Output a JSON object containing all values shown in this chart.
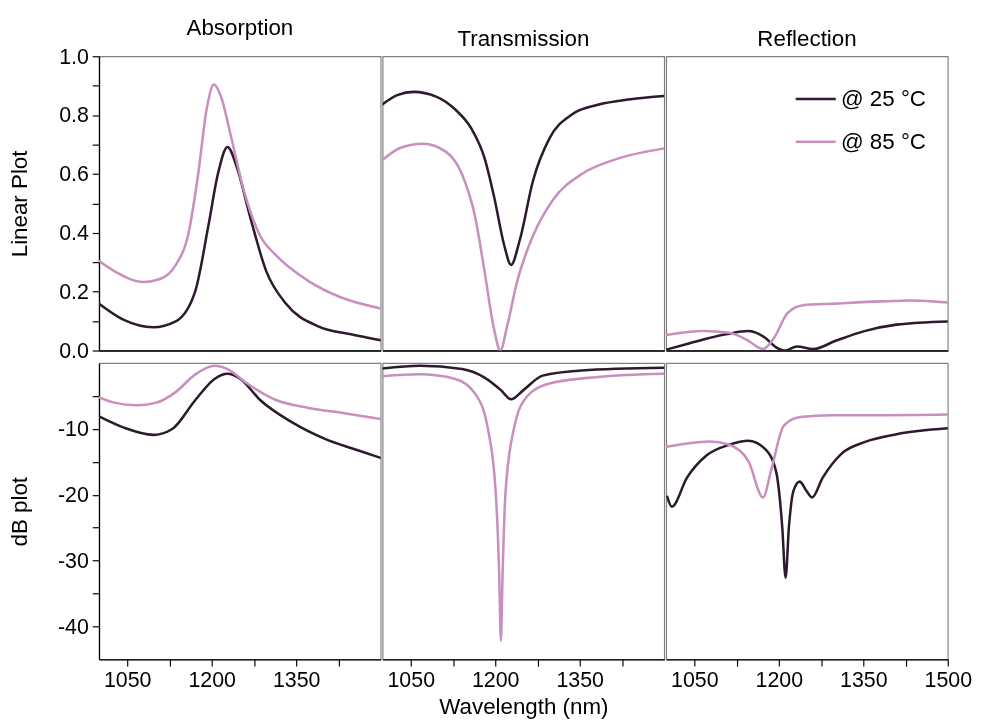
{
  "chart_data": [
    {
      "type": "line",
      "title": "Absorption",
      "ylabel": "Linear Plot",
      "xlim": [
        1000,
        1500
      ],
      "ylim": [
        0,
        1
      ],
      "tick_labels": "y",
      "yticks": [
        {
          "value": 0,
          "label": "0.0"
        },
        {
          "value": 0.1,
          "label": null
        },
        {
          "value": 0.2,
          "label": "0.2"
        },
        {
          "value": 0.3,
          "label": null
        },
        {
          "value": 0.4,
          "label": "0.4"
        },
        {
          "value": 0.5,
          "label": null
        },
        {
          "value": 0.6,
          "label": "0.6"
        },
        {
          "value": 0.7,
          "label": null
        },
        {
          "value": 0.8,
          "label": "0.8"
        },
        {
          "value": 0.9,
          "label": null
        },
        {
          "value": 1,
          "label": "1.0"
        }
      ],
      "series": [
        {
          "color": "#2e1a2e",
          "x": [
            1000,
            1044,
            1096,
            1136,
            1171,
            1194,
            1211,
            1228,
            1245,
            1268,
            1297,
            1332,
            1389,
            1447,
            1500
          ],
          "values": [
            0.159,
            0.104,
            0.079,
            0.099,
            0.203,
            0.423,
            0.6,
            0.692,
            0.621,
            0.456,
            0.269,
            0.159,
            0.082,
            0.055,
            0.035
          ]
        },
        {
          "color": "#c88fbf",
          "x": [
            1000,
            1027,
            1079,
            1107,
            1136,
            1159,
            1176,
            1191,
            1204,
            1217,
            1234,
            1257,
            1286,
            1314,
            1372,
            1429,
            1500
          ],
          "values": [
            0.304,
            0.27,
            0.233,
            0.242,
            0.29,
            0.4,
            0.6,
            0.82,
            0.904,
            0.86,
            0.73,
            0.544,
            0.39,
            0.324,
            0.236,
            0.181,
            0.143
          ]
        }
      ]
    },
    {
      "type": "line",
      "title": "Transmission",
      "xlim": [
        1000,
        1500
      ],
      "ylim": [
        0,
        1
      ],
      "tick_labels": false,
      "series": [
        {
          "color": "#2e1a2e",
          "x": [
            1000,
            1026,
            1055,
            1095,
            1129,
            1158,
            1181,
            1198,
            1216,
            1228,
            1244,
            1267,
            1296,
            1336,
            1382,
            1440,
            1500
          ],
          "values": [
            0.837,
            0.868,
            0.879,
            0.863,
            0.819,
            0.753,
            0.654,
            0.522,
            0.357,
            0.291,
            0.379,
            0.577,
            0.72,
            0.802,
            0.835,
            0.854,
            0.865
          ]
        },
        {
          "color": "#c88fbf",
          "x": [
            1000,
            1032,
            1072,
            1112,
            1141,
            1164,
            1181,
            1198,
            1209,
            1221,
            1239,
            1267,
            1302,
            1353,
            1411,
            1500
          ],
          "values": [
            0.648,
            0.689,
            0.703,
            0.676,
            0.599,
            0.456,
            0.269,
            0.071,
            0.0,
            0.082,
            0.236,
            0.39,
            0.511,
            0.599,
            0.648,
            0.687
          ]
        }
      ]
    },
    {
      "type": "line",
      "title": "Reflection",
      "xlim": [
        1000,
        1500
      ],
      "ylim": [
        0,
        1
      ],
      "tick_labels": false,
      "legend": "top right",
      "series": [
        {
          "name": "@ 25 °C",
          "color": "#2e1a2e",
          "x": [
            1000,
            1037,
            1106,
            1146,
            1175,
            1195,
            1212,
            1232,
            1261,
            1301,
            1352,
            1409,
            1500
          ],
          "values": [
            0.003,
            0.022,
            0.055,
            0.066,
            0.044,
            0.011,
            0.0,
            0.014,
            0.005,
            0.033,
            0.066,
            0.088,
            0.099
          ]
        },
        {
          "name": "@ 85 °C",
          "color": "#c88fbf",
          "x": [
            1000,
            1066,
            1112,
            1146,
            1172,
            1192,
            1215,
            1243,
            1295,
            1381,
            1438,
            1500
          ],
          "values": [
            0.053,
            0.066,
            0.06,
            0.033,
            0.005,
            0.044,
            0.126,
            0.154,
            0.159,
            0.167,
            0.17,
            0.163
          ]
        }
      ]
    },
    {
      "type": "line",
      "ylabel": "dB plot",
      "xlim": [
        1000,
        1500
      ],
      "ylim": [
        -45,
        0
      ],
      "xticks": [
        1050,
        {
          "value": 1125,
          "label": null
        },
        1200,
        {
          "value": 1275,
          "label": null
        },
        1350,
        {
          "value": 1425,
          "label": null
        }
      ],
      "yticks": [
        -40,
        {
          "value": -35,
          "label": null
        },
        -30,
        {
          "value": -25,
          "label": null
        },
        -20,
        {
          "value": -15,
          "label": null
        },
        -10,
        {
          "value": -5,
          "label": null
        }
      ],
      "series": [
        {
          "color": "#2e1a2e",
          "x": [
            1000,
            1044,
            1096,
            1130,
            1171,
            1205,
            1228,
            1251,
            1286,
            1343,
            1401,
            1458,
            1500
          ],
          "values": [
            -8.1,
            -9.8,
            -10.9,
            -10.0,
            -5.6,
            -2.4,
            -1.6,
            -2.4,
            -5.6,
            -9.0,
            -11.5,
            -13.2,
            -14.4
          ]
        },
        {
          "color": "#c88fbf",
          "x": [
            1000,
            1027,
            1067,
            1102,
            1136,
            1171,
            1205,
            1228,
            1263,
            1314,
            1372,
            1435,
            1500
          ],
          "values": [
            -5.2,
            -6.0,
            -6.4,
            -6.0,
            -4.4,
            -1.7,
            -0.4,
            -0.9,
            -3.1,
            -5.6,
            -6.8,
            -7.6,
            -8.5
          ]
        }
      ]
    },
    {
      "type": "line",
      "xlabel": "Wavelength (nm)",
      "xlim": [
        1000,
        1500
      ],
      "ylim": [
        -45,
        0
      ],
      "tick_labels": "x",
      "xticks": [
        1050,
        {
          "value": 1125,
          "label": null
        },
        1200,
        {
          "value": 1275,
          "label": null
        },
        1350,
        {
          "value": 1425,
          "label": null
        }
      ],
      "series": [
        {
          "color": "#2e1a2e",
          "x": [
            1000,
            1066,
            1141,
            1181,
            1210,
            1228,
            1250,
            1284,
            1353,
            1500
          ],
          "values": [
            -0.8,
            -0.4,
            -0.9,
            -2.2,
            -4.1,
            -5.5,
            -4.1,
            -1.9,
            -1.1,
            -0.7
          ]
        },
        {
          "color": "#c88fbf",
          "x": [
            1000,
            1066,
            1129,
            1164,
            1187,
            1201,
            1207,
            1210,
            1213,
            1218,
            1233,
            1256,
            1296,
            1382,
            1500
          ],
          "values": [
            -2.0,
            -1.7,
            -2.4,
            -4.6,
            -10.0,
            -19.9,
            -32.1,
            -42.2,
            -32.1,
            -19.9,
            -10.0,
            -5.1,
            -3.1,
            -2.1,
            -1.6
          ]
        }
      ]
    },
    {
      "type": "line",
      "xlim": [
        1000,
        1500
      ],
      "ylim": [
        -45,
        0
      ],
      "tick_labels": "x",
      "xticks": [
        1050,
        {
          "value": 1125,
          "label": null
        },
        1200,
        {
          "value": 1275,
          "label": null
        },
        1350,
        {
          "value": 1425,
          "label": null
        },
        1500
      ],
      "series": [
        {
          "color": "#2e1a2e",
          "x": [
            1002,
            1010,
            1037,
            1072,
            1112,
            1146,
            1175,
            1195,
            1206,
            1212,
            1218,
            1226,
            1237,
            1249,
            1259,
            1278,
            1312,
            1352,
            1409,
            1500
          ],
          "values": [
            -20.3,
            -21.8,
            -17.4,
            -14.0,
            -12.4,
            -11.8,
            -13.0,
            -16.4,
            -24.8,
            -32.6,
            -24.8,
            -19.4,
            -18.0,
            -19.4,
            -20.4,
            -17.4,
            -13.7,
            -12.0,
            -10.8,
            -9.9
          ]
        },
        {
          "color": "#c88fbf",
          "x": [
            1000,
            1037,
            1077,
            1112,
            1146,
            1172,
            1186,
            1209,
            1238,
            1295,
            1381,
            1500
          ],
          "values": [
            -12.7,
            -12.2,
            -11.9,
            -12.4,
            -14.9,
            -20.4,
            -16.4,
            -9.5,
            -8.2,
            -7.9,
            -7.9,
            -7.8
          ]
        }
      ]
    }
  ]
}
